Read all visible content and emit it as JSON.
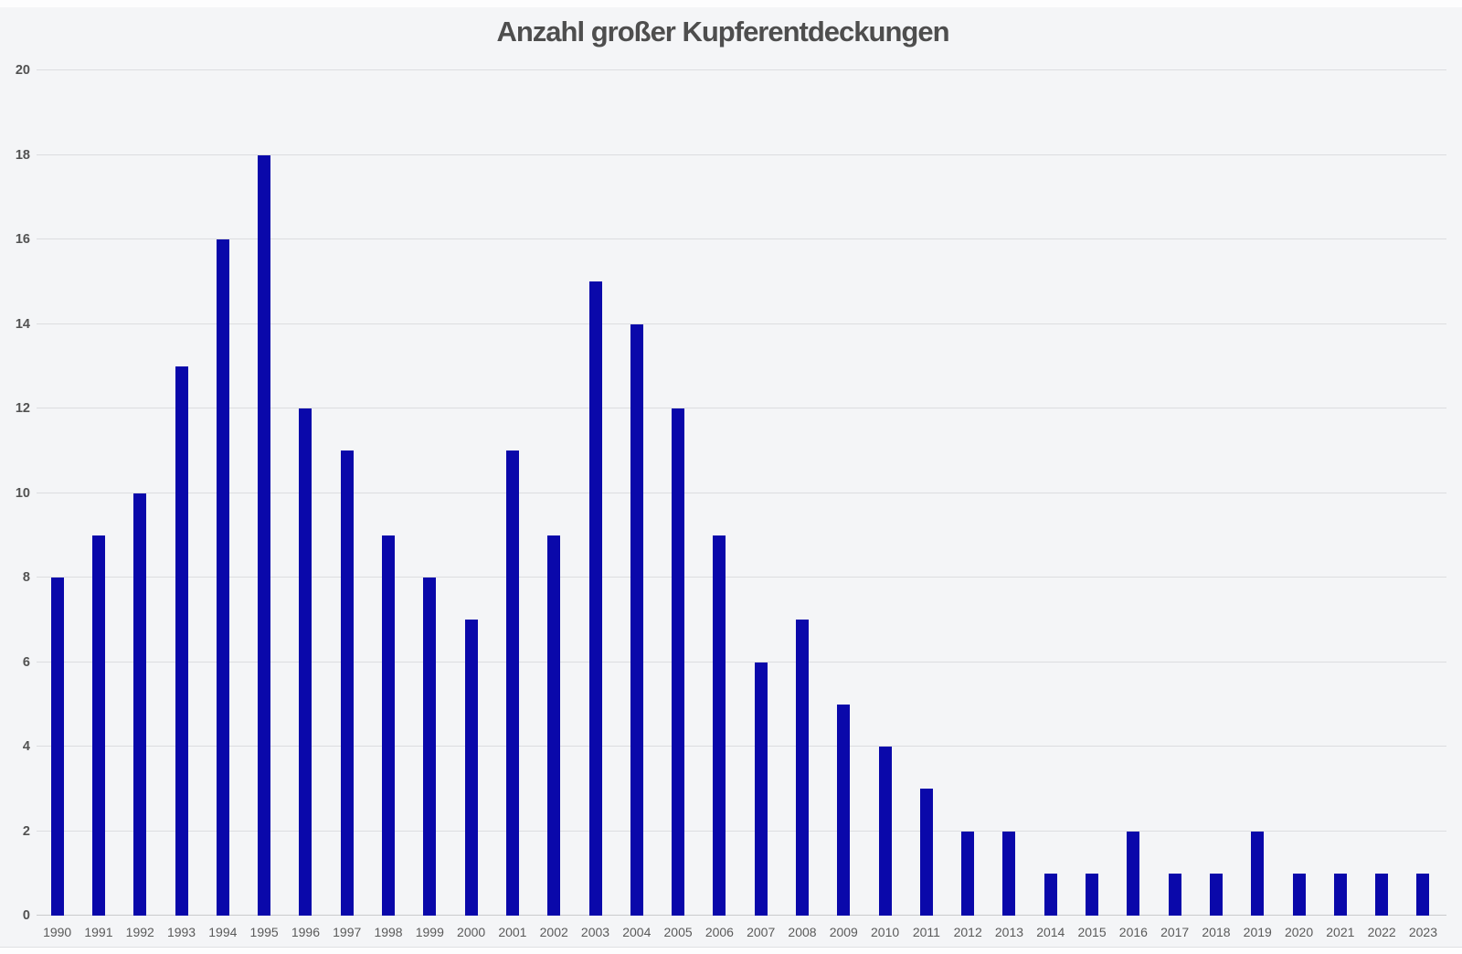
{
  "title": "Anzahl großer Kupferentdeckungen",
  "colors": {
    "bar": "#0a08aa",
    "card_background": "#f4f5f7",
    "page_background": "#fdfdfe",
    "gridline": "#dcdde0",
    "baseline": "#c9cacd",
    "title_text": "#4e4e4e",
    "y_tick_text": "#525252",
    "x_tick_text": "#5a5a5a"
  },
  "chart_data": {
    "type": "bar",
    "title": "Anzahl großer Kupferentdeckungen",
    "categories": [
      "1990",
      "1991",
      "1992",
      "1993",
      "1994",
      "1995",
      "1996",
      "1997",
      "1998",
      "1999",
      "2000",
      "2001",
      "2002",
      "2003",
      "2004",
      "2005",
      "2006",
      "2007",
      "2008",
      "2009",
      "2010",
      "2011",
      "2012",
      "2013",
      "2014",
      "2015",
      "2016",
      "2017",
      "2018",
      "2019",
      "2020",
      "2021",
      "2022",
      "2023"
    ],
    "values": [
      8,
      9,
      10,
      13,
      16,
      18,
      12,
      11,
      9,
      8,
      7,
      11,
      9,
      15,
      14,
      12,
      9,
      6,
      7,
      5,
      4,
      3,
      2,
      2,
      1,
      1,
      2,
      1,
      1,
      2,
      1,
      1,
      1,
      1
    ],
    "xlabel": "",
    "ylabel": "",
    "ylim": [
      0,
      20
    ],
    "yticks": [
      0,
      2,
      4,
      6,
      8,
      10,
      12,
      14,
      16,
      18,
      20
    ],
    "grid": true,
    "legend": false,
    "bar_color": "#0a08aa"
  }
}
